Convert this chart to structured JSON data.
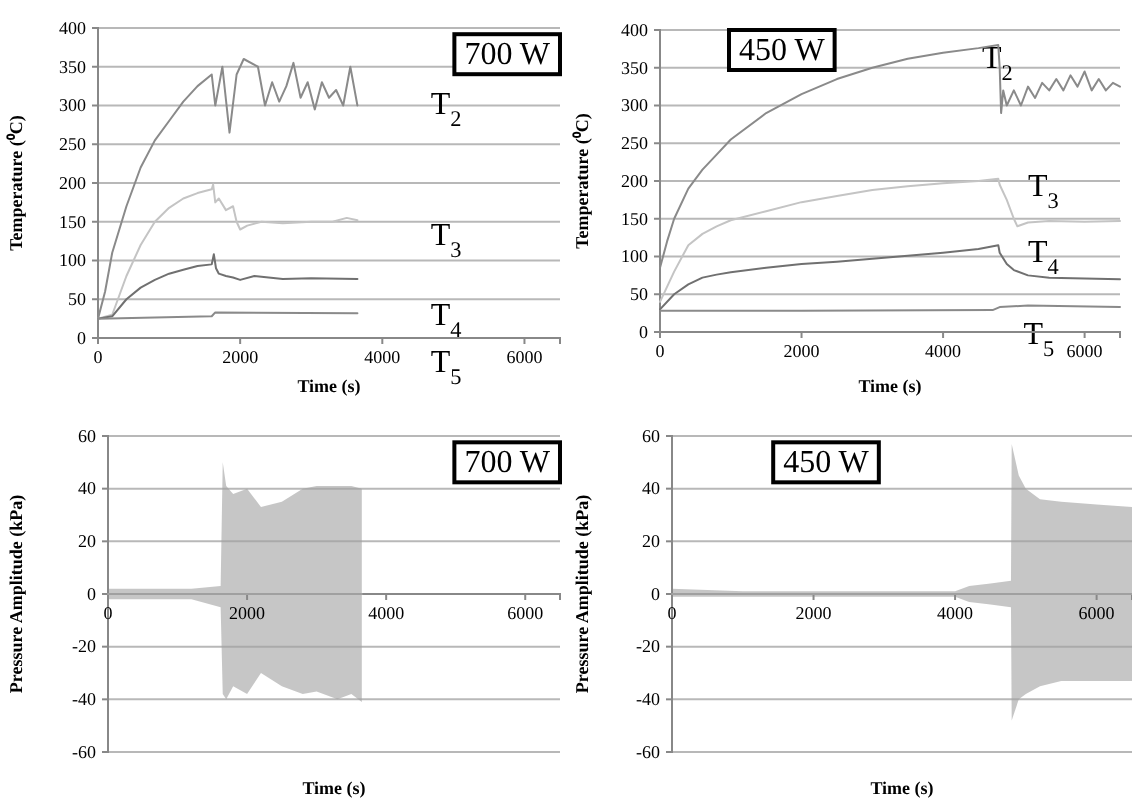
{
  "chart_data": [
    {
      "type": "line",
      "xlabel": "Time (s)",
      "ylabel": "Temperature (⁰C)",
      "xlim": [
        0,
        6500
      ],
      "ylim": [
        0,
        400
      ],
      "xticks": [
        0,
        2000,
        4000,
        6000
      ],
      "yticks": [
        0,
        50,
        100,
        150,
        200,
        250,
        300,
        350,
        400
      ],
      "grid": "y",
      "marker": "none",
      "line_style": "solid",
      "annotations": [
        "700 W",
        "T$_{2}$",
        "T$_{3}$",
        "T$_{4}$",
        "T$_{5}$"
      ],
      "series": [
        {
          "color": "#8a8a8a",
          "x": [
            0,
            100,
            200,
            400,
            600,
            800,
            1000,
            1200,
            1400,
            1600,
            1650,
            1750,
            1850,
            1950,
            2050,
            2250,
            2350,
            2450,
            2550,
            2650,
            2750,
            2850,
            2950,
            3050,
            3150,
            3250,
            3350,
            3450,
            3550,
            3650
          ],
          "values": [
            25,
            60,
            110,
            170,
            220,
            255,
            280,
            305,
            325,
            340,
            300,
            350,
            265,
            340,
            360,
            350,
            300,
            330,
            305,
            325,
            355,
            310,
            330,
            295,
            330,
            310,
            320,
            300,
            350,
            300
          ]
        },
        {
          "color": "#c4c4c4",
          "x": [
            0,
            200,
            400,
            600,
            800,
            1000,
            1200,
            1400,
            1600,
            1620,
            1650,
            1700,
            1800,
            1900,
            1950,
            2000,
            2100,
            2300,
            2600,
            3000,
            3300,
            3500,
            3650
          ],
          "values": [
            25,
            30,
            80,
            120,
            150,
            168,
            180,
            187,
            192,
            198,
            175,
            180,
            165,
            170,
            150,
            140,
            145,
            150,
            148,
            150,
            150,
            155,
            152
          ]
        },
        {
          "color": "#707070",
          "x": [
            0,
            200,
            400,
            600,
            800,
            1000,
            1200,
            1400,
            1600,
            1630,
            1660,
            1700,
            1800,
            1900,
            2000,
            2200,
            2400,
            2600,
            3000,
            3650
          ],
          "values": [
            25,
            28,
            50,
            65,
            75,
            83,
            88,
            93,
            95,
            108,
            90,
            83,
            80,
            78,
            75,
            80,
            78,
            76,
            77,
            76
          ]
        },
        {
          "color": "#8a8a8a",
          "x": [
            0,
            1600,
            1650,
            3650
          ],
          "values": [
            25,
            28,
            33,
            32
          ]
        }
      ]
    },
    {
      "type": "line",
      "xlabel": "Time (s)",
      "ylabel": "Temperature (⁰C)",
      "xlim": [
        0,
        6500
      ],
      "ylim": [
        0,
        400
      ],
      "xticks": [
        0,
        2000,
        4000,
        6000
      ],
      "yticks": [
        0,
        50,
        100,
        150,
        200,
        250,
        300,
        350,
        400
      ],
      "grid": "y",
      "marker": "none",
      "line_style": "solid",
      "annotations": [
        "450 W",
        "T$_{2}$",
        "T$_{3}$",
        "T$_{4}$",
        "T$_{5}$"
      ],
      "series": [
        {
          "color": "#8a8a8a",
          "x": [
            0,
            100,
            200,
            400,
            600,
            800,
            1000,
            1500,
            2000,
            2500,
            3000,
            3500,
            4000,
            4500,
            4780,
            4800,
            4820,
            4850,
            4900,
            5000,
            5100,
            5200,
            5300,
            5400,
            5500,
            5600,
            5700,
            5800,
            5900,
            6000,
            6100,
            6200,
            6300,
            6400,
            6500
          ],
          "values": [
            85,
            120,
            150,
            190,
            215,
            235,
            255,
            290,
            315,
            335,
            350,
            362,
            370,
            376,
            380,
            350,
            290,
            320,
            300,
            320,
            300,
            325,
            310,
            330,
            320,
            335,
            320,
            340,
            325,
            345,
            320,
            335,
            320,
            330,
            325
          ]
        },
        {
          "color": "#c4c4c4",
          "x": [
            0,
            200,
            400,
            600,
            800,
            1000,
            1500,
            2000,
            2500,
            3000,
            3500,
            4000,
            4500,
            4780,
            4800,
            4900,
            5000,
            5050,
            5200,
            5500,
            6000,
            6500
          ],
          "values": [
            40,
            80,
            115,
            130,
            140,
            148,
            160,
            172,
            180,
            188,
            193,
            197,
            200,
            203,
            195,
            175,
            150,
            140,
            145,
            147,
            146,
            147
          ]
        },
        {
          "color": "#707070",
          "x": [
            0,
            200,
            400,
            600,
            800,
            1000,
            1500,
            2000,
            2500,
            3000,
            3500,
            4000,
            4500,
            4780,
            4800,
            4900,
            5000,
            5200,
            5500,
            6000,
            6500
          ],
          "values": [
            30,
            50,
            63,
            72,
            76,
            79,
            85,
            90,
            93,
            97,
            101,
            105,
            110,
            115,
            105,
            90,
            82,
            75,
            72,
            71,
            70
          ]
        },
        {
          "color": "#8a8a8a",
          "x": [
            0,
            2000,
            4700,
            4800,
            5200,
            6500
          ],
          "values": [
            28,
            28,
            29,
            33,
            35,
            33
          ]
        }
      ]
    },
    {
      "type": "line",
      "xlabel": "Time (s)",
      "ylabel": "Pressure Amplitude (kPa)",
      "xlim": [
        0,
        6500
      ],
      "ylim": [
        -60,
        60
      ],
      "xticks": [
        0,
        2000,
        4000,
        6000
      ],
      "yticks": [
        -60,
        -40,
        -20,
        0,
        20,
        40,
        60
      ],
      "grid": "y",
      "marker": "none",
      "line_style": "solid",
      "annotations": [
        "700 W"
      ],
      "series": [
        {
          "color": "#a0a0a0",
          "x": [
            0,
            400,
            800,
            1200,
            1620,
            1650,
            1700,
            1800,
            2000,
            2200,
            2500,
            2800,
            3000,
            3300,
            3500,
            3650
          ],
          "values": [
            0,
            0,
            0,
            0,
            0,
            0,
            0,
            0,
            0,
            0,
            0,
            0,
            0,
            0,
            0,
            0
          ],
          "lower": [
            -2,
            -2,
            -2,
            -2,
            -5,
            -38,
            -40,
            -35,
            -38,
            -30,
            -35,
            -38,
            -37,
            -40,
            -38,
            -41
          ],
          "upper": [
            2,
            2,
            2,
            2,
            3,
            50,
            41,
            38,
            40,
            33,
            35,
            40,
            41,
            41,
            41,
            40
          ]
        }
      ]
    },
    {
      "type": "line",
      "xlabel": "Time (s)",
      "ylabel": "Pressure Amplitude (kPa)",
      "xlim": [
        0,
        6500
      ],
      "ylim": [
        -60,
        60
      ],
      "xticks": [
        0,
        2000,
        4000,
        6000
      ],
      "yticks": [
        -60,
        -40,
        -20,
        0,
        20,
        40,
        60
      ],
      "grid": "y",
      "marker": "none",
      "line_style": "solid",
      "annotations": [
        "450 W"
      ],
      "series": [
        {
          "color": "#a0a0a0",
          "x": [
            0,
            1000,
            2000,
            3000,
            4000,
            4200,
            4500,
            4790,
            4800,
            4900,
            5000,
            5200,
            5500,
            6000,
            6500
          ],
          "values": [
            0,
            0,
            0,
            0,
            0,
            0,
            0,
            0,
            0,
            0,
            0,
            0,
            0,
            0,
            0
          ],
          "lower": [
            -1,
            -1,
            -1,
            -1,
            -1,
            -3,
            -4,
            -5,
            -48,
            -40,
            -38,
            -35,
            -33,
            -33,
            -33
          ],
          "upper": [
            2,
            1,
            1,
            1,
            1,
            3,
            4,
            5,
            57,
            45,
            40,
            36,
            35,
            34,
            33
          ]
        }
      ]
    }
  ]
}
